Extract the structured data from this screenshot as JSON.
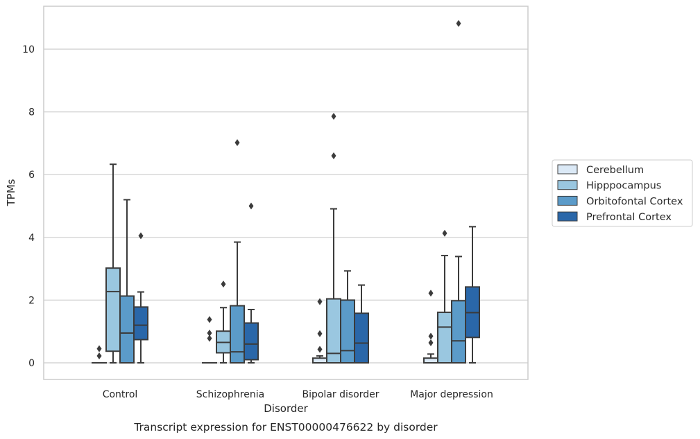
{
  "caption": "Transcript expression for ENST00000476622 by disorder",
  "chart_data": {
    "type": "box",
    "title": "",
    "xlabel": "Disorder",
    "ylabel": "TPMs",
    "ylim": [
      -0.5,
      11.4
    ],
    "yticks": [
      0,
      2,
      4,
      6,
      8,
      10
    ],
    "grid": "horizontal",
    "legend_position": "right",
    "categories": [
      "Control",
      "Schizophrenia",
      "Bipolar disorder",
      "Major depression"
    ],
    "series": [
      {
        "name": "Cerebellum",
        "color": "#dbe9f6",
        "boxes": [
          {
            "whislo": 0,
            "q1": 0,
            "med": 0,
            "q3": 0,
            "whishi": 0,
            "fliers": [
              0.22,
              0.45
            ]
          },
          {
            "whislo": 0,
            "q1": 0,
            "med": 0,
            "q3": 0,
            "whishi": 0,
            "fliers": [
              0.78,
              0.95,
              1.38
            ]
          },
          {
            "whislo": 0,
            "q1": 0,
            "med": 0,
            "q3": 0.15,
            "whishi": 0.22,
            "fliers": [
              0.43,
              0.93,
              1.95
            ]
          },
          {
            "whislo": 0,
            "q1": 0,
            "med": 0,
            "q3": 0.15,
            "whishi": 0.28,
            "fliers": [
              0.64,
              0.85,
              2.22
            ]
          }
        ]
      },
      {
        "name": "Hipppocampus",
        "color": "#9ac7e0",
        "boxes": [
          {
            "whislo": 0,
            "q1": 0.37,
            "med": 2.27,
            "q3": 3.02,
            "whishi": 6.33,
            "fliers": []
          },
          {
            "whislo": 0,
            "q1": 0.32,
            "med": 0.65,
            "q3": 1.01,
            "whishi": 1.76,
            "fliers": [
              2.51
            ]
          },
          {
            "whislo": 0,
            "q1": 0,
            "med": 0.3,
            "q3": 2.04,
            "whishi": 4.91,
            "fliers": [
              6.6,
              7.86
            ]
          },
          {
            "whislo": 0,
            "q1": 0,
            "med": 1.14,
            "q3": 1.61,
            "whishi": 3.42,
            "fliers": [
              4.13
            ]
          }
        ]
      },
      {
        "name": "Orbitofontal Cortex",
        "color": "#5b9bc9",
        "boxes": [
          {
            "whislo": 0,
            "q1": 0,
            "med": 0.95,
            "q3": 2.13,
            "whishi": 5.2,
            "fliers": []
          },
          {
            "whislo": 0,
            "q1": 0,
            "med": 0.35,
            "q3": 1.82,
            "whishi": 3.85,
            "fliers": [
              7.02
            ]
          },
          {
            "whislo": 0,
            "q1": 0,
            "med": 0.39,
            "q3": 2.0,
            "whishi": 2.93,
            "fliers": []
          },
          {
            "whislo": 0,
            "q1": 0,
            "med": 0.7,
            "q3": 1.98,
            "whishi": 3.39,
            "fliers": [
              10.82
            ]
          }
        ]
      },
      {
        "name": "Prefrontal Cortex",
        "color": "#2a67a9",
        "boxes": [
          {
            "whislo": 0,
            "q1": 0.74,
            "med": 1.2,
            "q3": 1.78,
            "whishi": 2.26,
            "fliers": [
              4.05
            ]
          },
          {
            "whislo": 0,
            "q1": 0.1,
            "med": 0.6,
            "q3": 1.27,
            "whishi": 1.7,
            "fliers": [
              5.0
            ]
          },
          {
            "whislo": 0,
            "q1": 0,
            "med": 0.63,
            "q3": 1.58,
            "whishi": 2.48,
            "fliers": []
          },
          {
            "whislo": 0,
            "q1": 0.81,
            "med": 1.6,
            "q3": 2.42,
            "whishi": 4.34,
            "fliers": []
          }
        ]
      }
    ]
  }
}
